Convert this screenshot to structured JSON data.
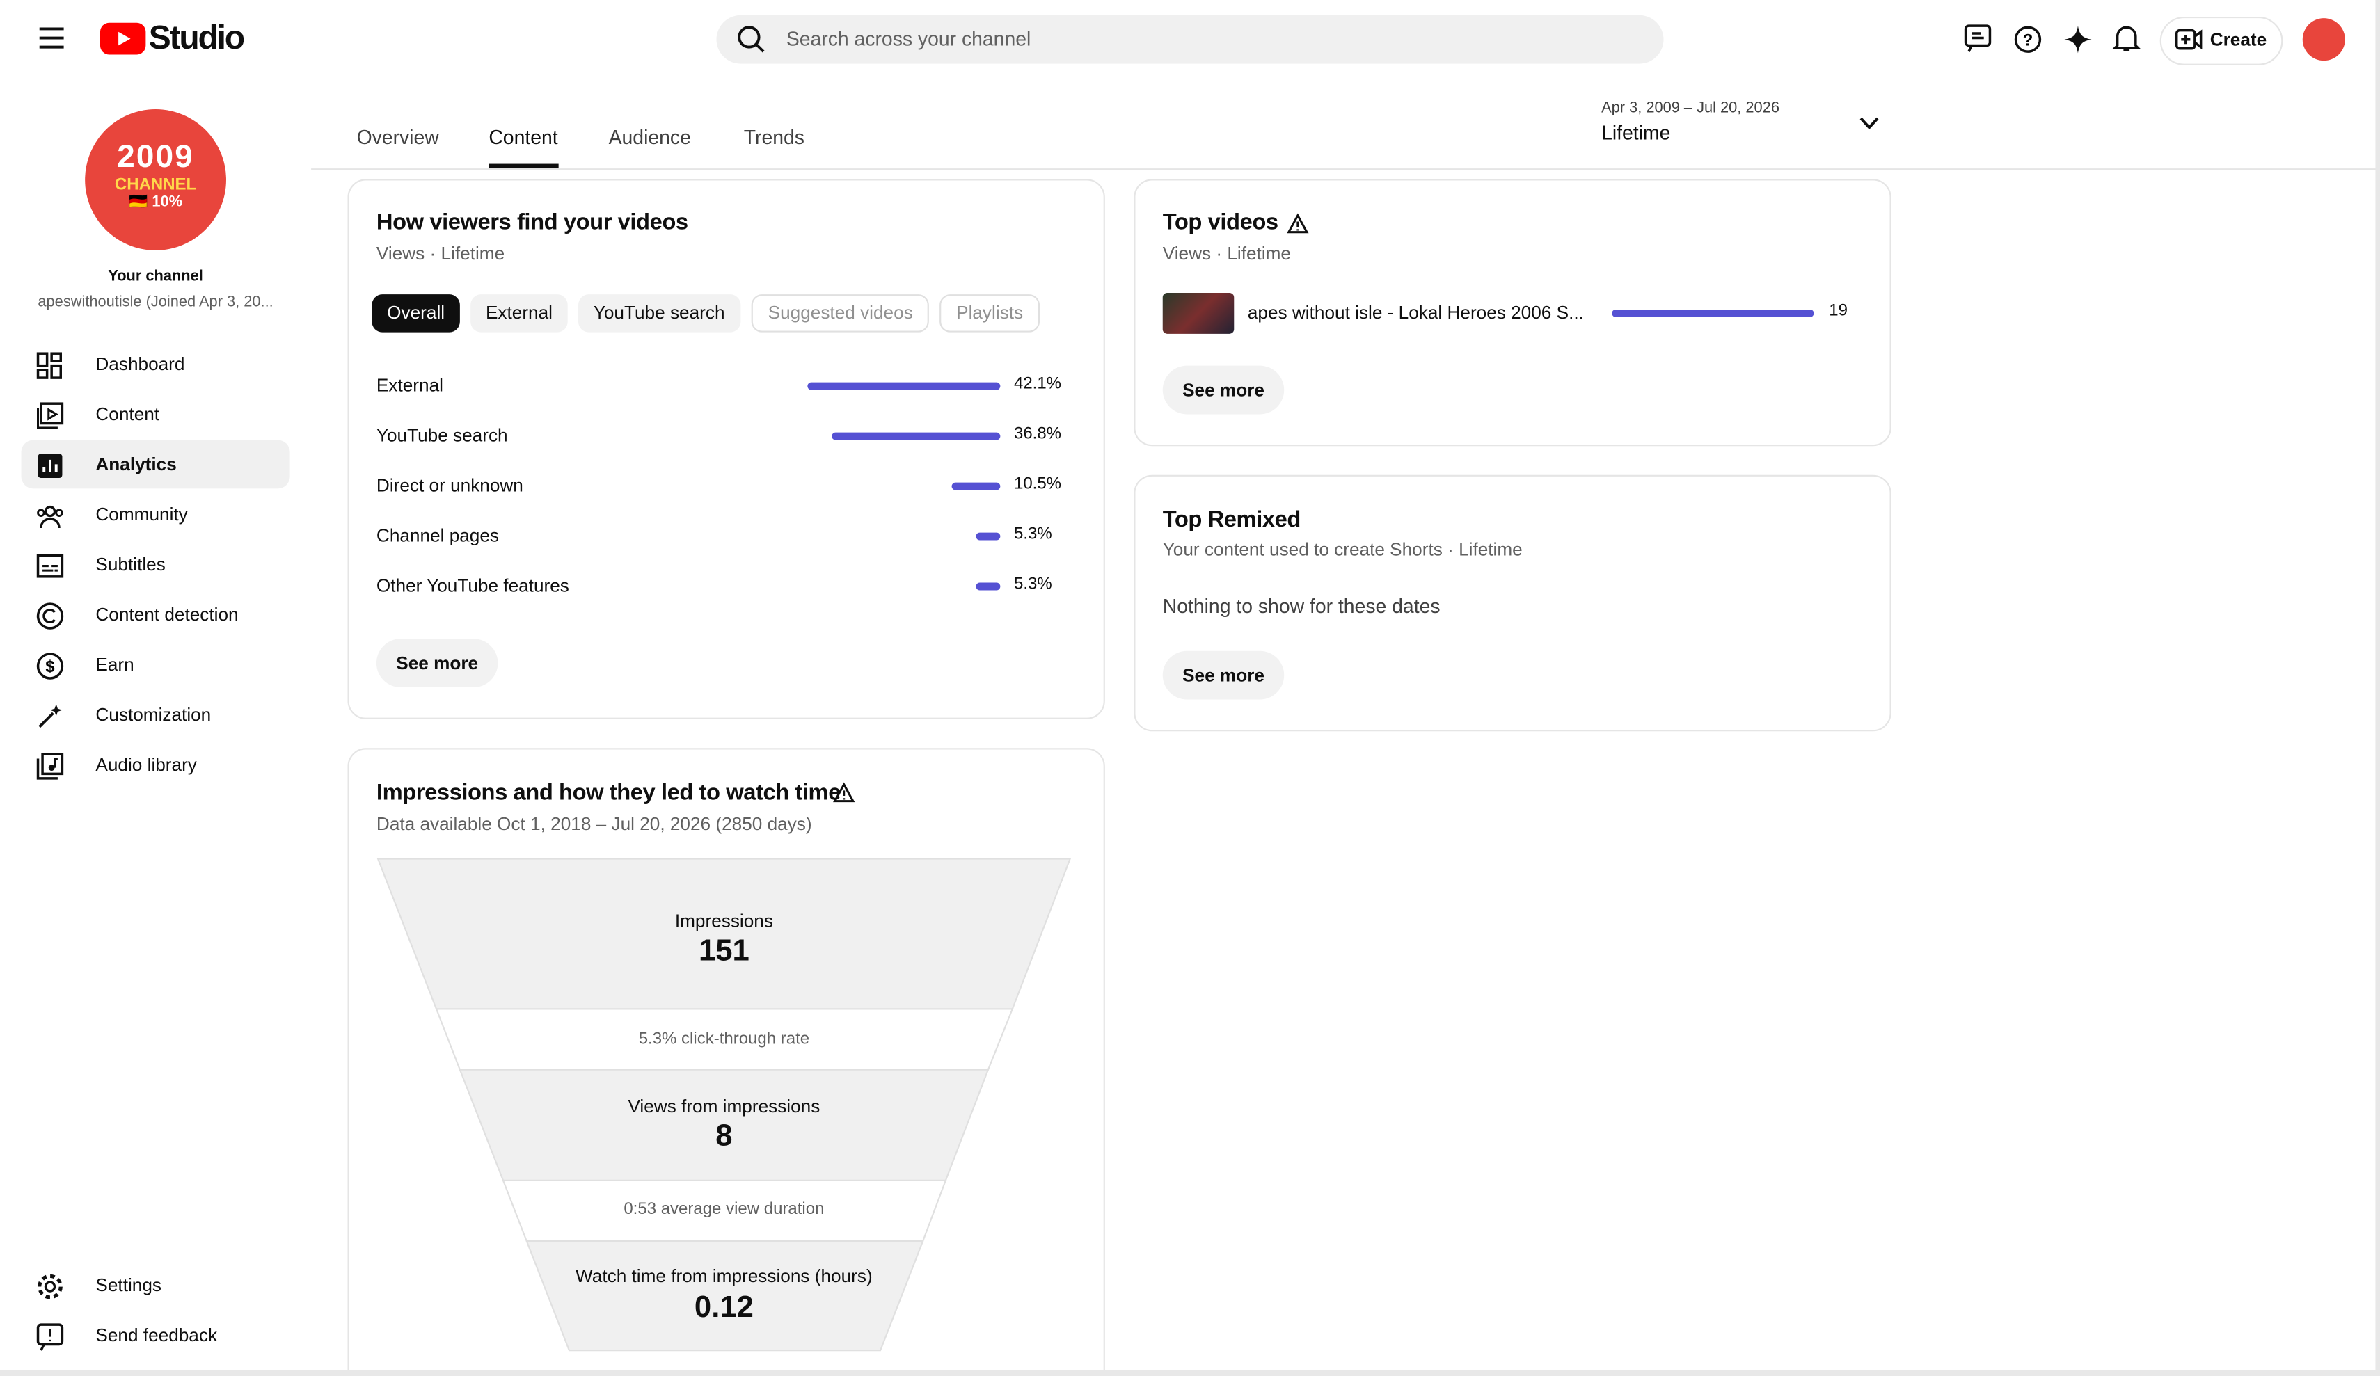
{
  "header": {
    "app": "Studio",
    "search_placeholder": "Search across your channel",
    "create": "Create"
  },
  "channel": {
    "badge_line1": "2009",
    "badge_line2": "CHANNEL",
    "badge_line3": "🇩🇪 10%",
    "label": "Your channel",
    "handle": "apeswithoutisle (Joined Apr 3, 20..."
  },
  "nav": [
    "Dashboard",
    "Content",
    "Analytics",
    "Community",
    "Subtitles",
    "Content detection",
    "Earn",
    "Customization",
    "Audio library"
  ],
  "nav_bottom": [
    "Settings",
    "Send feedback"
  ],
  "tabs": [
    "Overview",
    "Content",
    "Audience",
    "Trends"
  ],
  "date_range": {
    "dates": "Apr 3, 2009 – Jul 20, 2026",
    "period": "Lifetime"
  },
  "traffic": {
    "title": "How viewers find your videos",
    "subtitle": "Views · Lifetime",
    "chips": [
      "Overall",
      "External",
      "YouTube search",
      "Suggested videos",
      "Playlists"
    ],
    "rows": [
      {
        "name": "External",
        "value": 42.1,
        "label": "42.1%"
      },
      {
        "name": "YouTube search",
        "value": 36.8,
        "label": "36.8%"
      },
      {
        "name": "Direct or unknown",
        "value": 10.5,
        "label": "10.5%"
      },
      {
        "name": "Channel pages",
        "value": 5.3,
        "label": "5.3%"
      },
      {
        "name": "Other YouTube features",
        "value": 5.3,
        "label": "5.3%"
      }
    ],
    "button": "See more"
  },
  "top_videos": {
    "title": "Top videos",
    "subtitle": "Views · Lifetime",
    "rows": [
      {
        "name": "apes without isle - Lokal Heroes 2006 S...",
        "value": 19
      }
    ],
    "button": "See more"
  },
  "top_remixed": {
    "title": "Top Remixed",
    "subtitle": "Your content used to create Shorts · Lifetime",
    "empty": "Nothing to show for these dates",
    "button": "See more"
  },
  "funnel": {
    "title": "Impressions and how they led to watch time",
    "subtitle": "Data available Oct 1, 2018 – Jul 20, 2026 (2850 days)",
    "impressions_label": "Impressions",
    "impressions": "151",
    "ctr": "5.3% click-through rate",
    "views_label": "Views from impressions",
    "views": "8",
    "avd": "0:53 average view duration",
    "watch_label": "Watch time from impressions (hours)",
    "watch": "0.12"
  }
}
